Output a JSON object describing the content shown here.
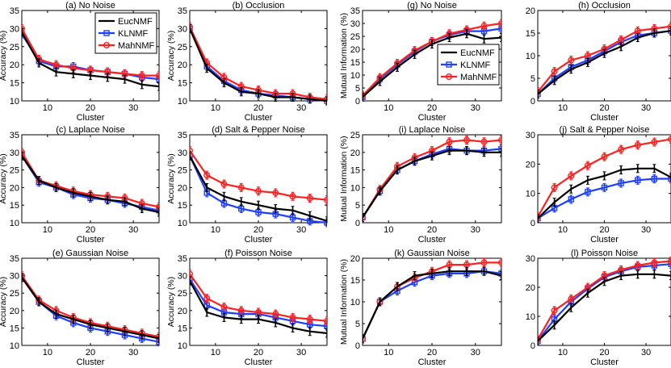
{
  "legend": [
    "EucNMF",
    "KLNMF",
    "MahNMF"
  ],
  "colors": {
    "EucNMF": "#000000",
    "KLNMF": "#1f3fff",
    "MahNMF": "#ff2020"
  },
  "chart_data": [
    {
      "type": "line",
      "title": "(a) No Noise",
      "xlabel": "Cluster",
      "ylabel": "Accuracy (%)",
      "xlim": [
        4,
        36
      ],
      "ylim": [
        10,
        35
      ],
      "yticks": [
        10,
        15,
        20,
        25,
        30,
        35
      ],
      "xticks": [
        10,
        20,
        30
      ],
      "legend": "top-right",
      "x": [
        4,
        8,
        12,
        16,
        20,
        24,
        28,
        32,
        36
      ],
      "series": [
        {
          "name": "EucNMF",
          "values": [
            29,
            20.5,
            18,
            17.5,
            17,
            16.5,
            16,
            14.5,
            14
          ]
        },
        {
          "name": "KLNMF",
          "values": [
            28.5,
            21,
            19.5,
            19.5,
            18.5,
            18,
            17.5,
            16.5,
            16
          ]
        },
        {
          "name": "MahNMF",
          "values": [
            30,
            21.5,
            20,
            19,
            18.5,
            18,
            17.5,
            17,
            17
          ]
        }
      ]
    },
    {
      "type": "line",
      "title": "(b) Occlusion",
      "xlabel": "Cluster",
      "ylabel": "Accuracy (%)",
      "xlim": [
        4,
        36
      ],
      "ylim": [
        10,
        35
      ],
      "yticks": [
        10,
        15,
        20,
        25,
        30,
        35
      ],
      "xticks": [
        10,
        20,
        30
      ],
      "x": [
        4,
        8,
        12,
        16,
        20,
        24,
        28,
        32,
        36
      ],
      "series": [
        {
          "name": "EucNMF",
          "values": [
            30,
            19,
            15,
            12.5,
            12,
            11,
            11,
            10.5,
            10
          ]
        },
        {
          "name": "KLNMF",
          "values": [
            30,
            19.5,
            15.5,
            13,
            12,
            11.5,
            11,
            10.5,
            10
          ]
        },
        {
          "name": "MahNMF",
          "values": [
            30.5,
            20.5,
            16.5,
            14,
            13,
            12,
            12,
            11,
            10.5
          ]
        }
      ]
    },
    {
      "type": "line",
      "title": "(g) No Noise",
      "xlabel": "Cluster",
      "ylabel": "Mutual Information (%)",
      "xlim": [
        4,
        36
      ],
      "ylim": [
        0,
        35
      ],
      "yticks": [
        0,
        5,
        10,
        15,
        20,
        25,
        30,
        35
      ],
      "xticks": [
        10,
        20,
        30
      ],
      "legend": "bottom-right",
      "x": [
        4,
        8,
        12,
        16,
        20,
        24,
        28,
        32,
        36
      ],
      "series": [
        {
          "name": "EucNMF",
          "values": [
            1.5,
            7.5,
            13,
            18,
            22,
            24.5,
            26,
            24,
            24.5
          ]
        },
        {
          "name": "KLNMF",
          "values": [
            1.5,
            8.5,
            14,
            19,
            23,
            25.5,
            27,
            27,
            28
          ]
        },
        {
          "name": "MahNMF",
          "values": [
            2,
            9,
            14.5,
            19.5,
            23,
            26,
            27.5,
            29,
            30
          ]
        }
      ]
    },
    {
      "type": "line",
      "title": "(h) Occlusion",
      "xlabel": "Cluster",
      "ylabel": "",
      "xlim": [
        4,
        36
      ],
      "ylim": [
        0,
        20
      ],
      "yticks": [
        0,
        5,
        10,
        15,
        20
      ],
      "xticks": [
        10,
        20,
        30
      ],
      "x": [
        4,
        8,
        12,
        16,
        20,
        24,
        28,
        32,
        36
      ],
      "series": [
        {
          "name": "EucNMF",
          "values": [
            1.5,
            4.5,
            7,
            8.5,
            10.5,
            12,
            14,
            15,
            15.5
          ]
        },
        {
          "name": "KLNMF",
          "values": [
            1.5,
            5,
            7.5,
            9,
            11,
            13,
            14.5,
            15,
            15.5
          ]
        },
        {
          "name": "MahNMF",
          "values": [
            2,
            6.5,
            9,
            10,
            11.5,
            13.5,
            15.5,
            16,
            16.5
          ]
        }
      ]
    },
    {
      "type": "line",
      "title": "(c) Laplace Noise",
      "xlabel": "Cluster",
      "ylabel": "Accuracy (%)",
      "xlim": [
        4,
        36
      ],
      "ylim": [
        10,
        35
      ],
      "yticks": [
        10,
        15,
        20,
        25,
        30,
        35
      ],
      "xticks": [
        10,
        20,
        30
      ],
      "x": [
        4,
        8,
        12,
        16,
        20,
        24,
        28,
        32,
        36
      ],
      "series": [
        {
          "name": "EucNMF",
          "values": [
            29,
            22,
            20,
            18.5,
            17.5,
            16.5,
            16,
            14,
            13
          ]
        },
        {
          "name": "KLNMF",
          "values": [
            29,
            21.5,
            20,
            18,
            17,
            16.5,
            15.5,
            14.5,
            13.5
          ]
        },
        {
          "name": "MahNMF",
          "values": [
            30,
            22,
            20.5,
            19,
            18,
            17.5,
            17,
            15.5,
            14.5
          ]
        }
      ]
    },
    {
      "type": "line",
      "title": "(d) Salt & Pepper Noise",
      "xlabel": "Cluster",
      "ylabel": "Accuracy (%)",
      "xlim": [
        4,
        36
      ],
      "ylim": [
        10,
        35
      ],
      "yticks": [
        10,
        15,
        20,
        25,
        30,
        35
      ],
      "xticks": [
        10,
        20,
        30
      ],
      "x": [
        4,
        8,
        12,
        16,
        20,
        24,
        28,
        32,
        36
      ],
      "series": [
        {
          "name": "EucNMF",
          "values": [
            29,
            20,
            17.5,
            16,
            15,
            14,
            13.5,
            12,
            10.5
          ]
        },
        {
          "name": "KLNMF",
          "values": [
            29,
            18.5,
            15.5,
            14,
            13,
            12.5,
            11.5,
            10.5,
            10
          ]
        },
        {
          "name": "MahNMF",
          "values": [
            30.5,
            23.5,
            21,
            20,
            19,
            18.5,
            17.5,
            17,
            16.5
          ]
        }
      ]
    },
    {
      "type": "line",
      "title": "(i) Laplace Noise",
      "xlabel": "Cluster",
      "ylabel": "Mutual Information (%)",
      "xlim": [
        4,
        36
      ],
      "ylim": [
        0,
        25
      ],
      "yticks": [
        0,
        5,
        10,
        15,
        20,
        25
      ],
      "xticks": [
        10,
        20,
        30
      ],
      "x": [
        4,
        8,
        12,
        16,
        20,
        24,
        28,
        32,
        36
      ],
      "series": [
        {
          "name": "EucNMF",
          "values": [
            1.5,
            9,
            15,
            17.5,
            19,
            20.5,
            20.5,
            20,
            20
          ]
        },
        {
          "name": "KLNMF",
          "values": [
            1.5,
            9,
            15,
            17.5,
            19.5,
            21,
            20.5,
            20.5,
            21
          ]
        },
        {
          "name": "MahNMF",
          "values": [
            1.5,
            9.5,
            16,
            18.5,
            20.5,
            23,
            23.5,
            23,
            23.5
          ]
        }
      ]
    },
    {
      "type": "line",
      "title": "(j) Salt & Pepper Noise",
      "xlabel": "Cluster",
      "ylabel": "",
      "xlim": [
        4,
        36
      ],
      "ylim": [
        0,
        30
      ],
      "yticks": [
        0,
        10,
        20,
        30
      ],
      "xticks": [
        10,
        20,
        30
      ],
      "x": [
        4,
        8,
        12,
        16,
        20,
        24,
        28,
        32,
        36
      ],
      "series": [
        {
          "name": "EucNMF",
          "values": [
            1.5,
            7,
            11.5,
            14.5,
            16,
            18,
            18.5,
            18.5,
            15.5
          ]
        },
        {
          "name": "KLNMF",
          "values": [
            1.5,
            5,
            8,
            10.5,
            12,
            13.5,
            14.5,
            15,
            15
          ]
        },
        {
          "name": "MahNMF",
          "values": [
            2,
            12,
            16,
            19.5,
            22.5,
            25,
            26.5,
            27.5,
            28.5
          ]
        }
      ]
    },
    {
      "type": "line",
      "title": "(e) Gaussian Noise",
      "xlabel": "Cluster",
      "ylabel": "Accuracy (%)",
      "xlim": [
        4,
        36
      ],
      "ylim": [
        10,
        35
      ],
      "yticks": [
        10,
        15,
        20,
        25,
        30,
        35
      ],
      "xticks": [
        10,
        20,
        30
      ],
      "x": [
        4,
        8,
        12,
        16,
        20,
        24,
        28,
        32,
        36
      ],
      "series": [
        {
          "name": "EucNMF",
          "values": [
            29.5,
            22.5,
            19,
            17.5,
            16,
            15,
            14,
            13,
            12
          ]
        },
        {
          "name": "KLNMF",
          "values": [
            29.5,
            22.5,
            18.5,
            16.5,
            15,
            14,
            13,
            12,
            11
          ]
        },
        {
          "name": "MahNMF",
          "values": [
            30,
            23,
            20,
            18,
            16.5,
            15.5,
            14.5,
            13.5,
            12.5
          ]
        }
      ]
    },
    {
      "type": "line",
      "title": "(f) Poisson Noise",
      "xlabel": "Cluster",
      "ylabel": "Accuracy (%)",
      "xlim": [
        4,
        36
      ],
      "ylim": [
        10,
        35
      ],
      "yticks": [
        10,
        15,
        20,
        25,
        30,
        35
      ],
      "xticks": [
        10,
        20,
        30
      ],
      "x": [
        4,
        8,
        12,
        16,
        20,
        24,
        28,
        32,
        36
      ],
      "series": [
        {
          "name": "EucNMF",
          "values": [
            28.5,
            19.5,
            18,
            17.5,
            17.5,
            16.5,
            15,
            14,
            13.5
          ]
        },
        {
          "name": "KLNMF",
          "values": [
            29,
            21.5,
            19.5,
            19,
            19,
            18,
            17,
            16,
            15.5
          ]
        },
        {
          "name": "MahNMF",
          "values": [
            30.5,
            23.5,
            21,
            20,
            19.5,
            19,
            18,
            17.5,
            17
          ]
        }
      ]
    },
    {
      "type": "line",
      "title": "(k) Gaussian Noise",
      "xlabel": "Cluster",
      "ylabel": "Mutual Information (%)",
      "xlim": [
        4,
        36
      ],
      "ylim": [
        0,
        20
      ],
      "yticks": [
        0,
        5,
        10,
        15,
        20
      ],
      "xticks": [
        10,
        20,
        30
      ],
      "x": [
        4,
        8,
        12,
        16,
        20,
        24,
        28,
        32,
        36
      ],
      "series": [
        {
          "name": "EucNMF",
          "values": [
            1.5,
            10,
            13.5,
            16,
            16.5,
            17,
            17,
            17,
            16
          ]
        },
        {
          "name": "KLNMF",
          "values": [
            1.5,
            10,
            12.5,
            14.5,
            16,
            16.5,
            16.5,
            17,
            16.5
          ]
        },
        {
          "name": "MahNMF",
          "values": [
            1.5,
            10,
            13.5,
            15.5,
            17,
            18.5,
            18.5,
            19,
            19
          ]
        }
      ]
    },
    {
      "type": "line",
      "title": "(l) Poisson Noise",
      "xlabel": "Cluster",
      "ylabel": "",
      "xlim": [
        4,
        36
      ],
      "ylim": [
        0,
        30
      ],
      "yticks": [
        0,
        10,
        20,
        30
      ],
      "xticks": [
        10,
        20,
        30
      ],
      "x": [
        4,
        8,
        12,
        16,
        20,
        24,
        28,
        32,
        36
      ],
      "series": [
        {
          "name": "EucNMF",
          "values": [
            1.5,
            7,
            13,
            18,
            22,
            24,
            24.5,
            24.5,
            24
          ]
        },
        {
          "name": "KLNMF",
          "values": [
            1.5,
            9,
            15,
            19.5,
            23.5,
            25.5,
            27,
            27.5,
            28
          ]
        },
        {
          "name": "MahNMF",
          "values": [
            2,
            12,
            16,
            20,
            24,
            26,
            27.5,
            28.5,
            29
          ]
        }
      ]
    }
  ]
}
